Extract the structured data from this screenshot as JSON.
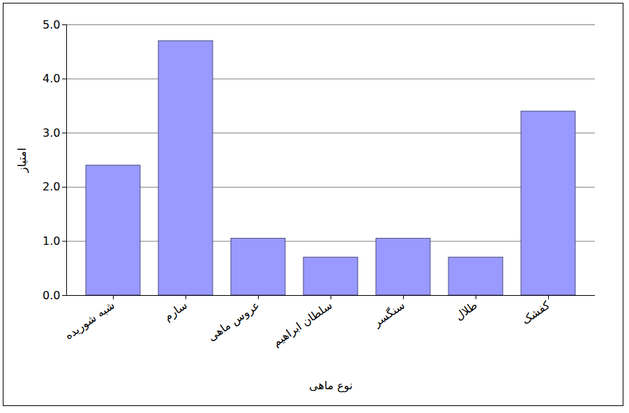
{
  "chart_data": {
    "type": "bar",
    "x_label": "نوع ماهی",
    "y_label": "امتیاز",
    "categories": [
      "شبه شوریده",
      "سارم",
      "عروس ماهی",
      "سلطان ابراهیم",
      "سنگسر",
      "طلال",
      "کفشک"
    ],
    "values": [
      2.4,
      4.7,
      1.05,
      0.7,
      1.05,
      0.7,
      3.4
    ],
    "color": "#9999ff",
    "ylim": [
      0,
      5
    ],
    "yticks": [
      {
        "value": 0,
        "label": "0.0"
      },
      {
        "value": 1,
        "label": "1.0"
      },
      {
        "value": 2,
        "label": "2.0"
      },
      {
        "value": 3,
        "label": "3.0"
      },
      {
        "value": 4,
        "label": "4.0"
      },
      {
        "value": 5,
        "label": "5.0"
      }
    ],
    "grid": true
  }
}
